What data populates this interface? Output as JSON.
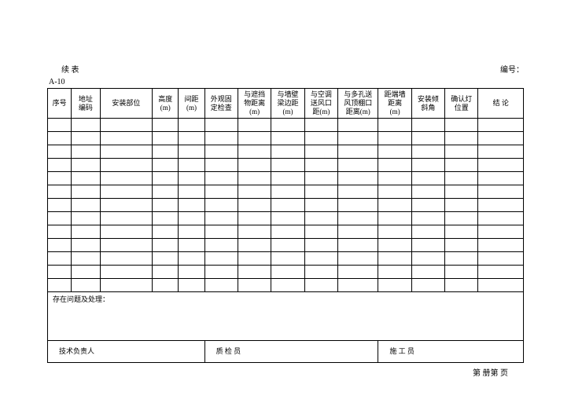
{
  "header": {
    "continued": "续 表",
    "serial_label": "编号：",
    "form_code": "A-10"
  },
  "columns": {
    "c0": "序号",
    "c1": "地址\n编码",
    "c2": "安装部位",
    "c3": "高度\n(m)",
    "c4": "间距\n(m)",
    "c5": "外观固\n定检查",
    "c6": "与遮挡\n物距离\n(m)",
    "c7": "与墙壁\n梁边距\n(m)",
    "c8": "与空调\n送风口\n距(m)",
    "c9": "与多孔送\n风顶棚口\n距离(m)",
    "c10": "距端墙\n距离\n(m)",
    "c11": "安装倾\n斜角",
    "c12": "确认灯\n位置",
    "c13": "结 论"
  },
  "col_widths": {
    "c0": "5%",
    "c1": "6%",
    "c2": "11%",
    "c3": "5.5%",
    "c4": "5.5%",
    "c5": "7%",
    "c6": "7%",
    "c7": "7%",
    "c8": "7%",
    "c9": "8.5%",
    "c10": "7%",
    "c11": "7%",
    "c12": "7%",
    "c13": "9.5%"
  },
  "issues_label": "存在问题及处理：",
  "signatures": {
    "tech": "技术负责人",
    "qc": "质 检 员",
    "worker": "施 工 员"
  },
  "footer": "第    册第    页",
  "data_row_count": 13
}
